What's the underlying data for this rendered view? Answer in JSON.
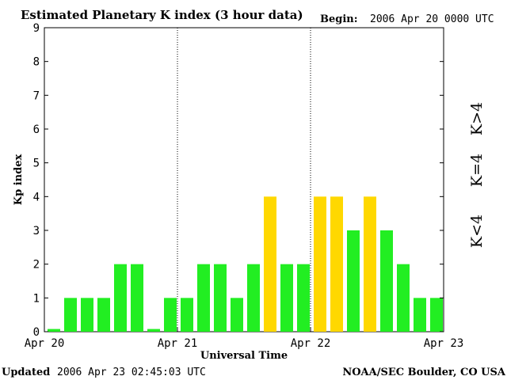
{
  "header": {
    "title": "Estimated Planetary K index (3 hour data)",
    "begin_label": "Begin:",
    "begin_value": "2006 Apr 20 0000 UTC"
  },
  "footer": {
    "updated_label": "Updated",
    "updated_value": "2006 Apr 23 02:45:03 UTC",
    "credit": "NOAA/SEC Boulder, CO USA"
  },
  "legend": {
    "above": "K>4",
    "equal": "K=4",
    "below": "K<4"
  },
  "colors": {
    "below": "#22ee22",
    "equal": "#ffd800",
    "above": "#ff2a00"
  },
  "chart_data": {
    "type": "bar",
    "title": "Estimated Planetary K index (3 hour data)",
    "xlabel": "Universal Time",
    "ylabel": "Kp index",
    "ylim": [
      0,
      9
    ],
    "yticks": [
      "0",
      "1",
      "2",
      "3",
      "4",
      "5",
      "6",
      "7",
      "8",
      "9"
    ],
    "xticks": [
      "Apr 20",
      "Apr 21",
      "Apr 22",
      "Apr 23"
    ],
    "grid": false,
    "day_separators": "dotted",
    "values": [
      0,
      1,
      1,
      1,
      2,
      2,
      0,
      1,
      1,
      2,
      2,
      1,
      2,
      4,
      2,
      2,
      4,
      4,
      3,
      4,
      3,
      2,
      1,
      1
    ]
  }
}
